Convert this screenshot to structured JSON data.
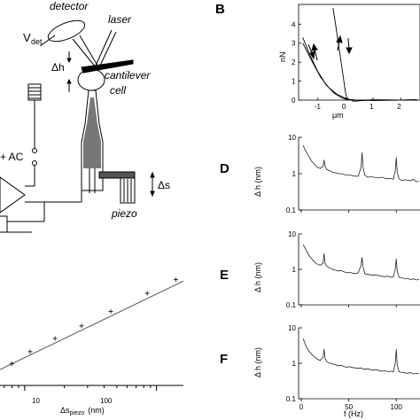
{
  "panelA": {
    "labels": {
      "detector": "detector",
      "laser": "laser",
      "vdet": "V",
      "vdet_sub": "det",
      "dh": "Δh",
      "cantilever": "cantilever",
      "cell": "cell",
      "ac": "+ AC",
      "ds": "Δs",
      "piezo": "piezo"
    }
  },
  "panels": {
    "B": "B",
    "D": "D",
    "E": "E",
    "F": "F"
  },
  "chart_data": [
    {
      "id": "calibration",
      "type": "line",
      "xscale": "log",
      "yscale": "log",
      "xlabel": "Δs",
      "xlabel_sub": "piezo",
      "xlabel_unit": "(nm)",
      "xticks": [
        "10",
        "100"
      ],
      "xlim": [
        6.5,
        160
      ],
      "ylim": [
        0.3,
        40
      ],
      "x": [
        8,
        11,
        17,
        27,
        45,
        85,
        140
      ],
      "y": [
        0.65,
        1.0,
        1.6,
        2.5,
        4.2,
        8.0,
        13.0
      ]
    },
    {
      "id": "B",
      "type": "line",
      "xlabel": "μm",
      "ylabel": "nN",
      "xticks": [
        "-1",
        "0",
        "1",
        "2"
      ],
      "yticks": [
        "0",
        "1",
        "2",
        "3",
        "4"
      ],
      "xlim": [
        -1.7,
        2.7
      ],
      "ylim": [
        0,
        4.9
      ],
      "series": [
        {
          "x": [
            -1.55,
            -1.3,
            -1.0,
            -0.7,
            -0.4,
            -0.1,
            0.05,
            0.3,
            1.0,
            2.0,
            2.6
          ],
          "y": [
            3.3,
            2.4,
            1.5,
            0.8,
            0.35,
            0.1,
            0.04,
            0.0,
            -0.02,
            0.0,
            0.02
          ]
        },
        {
          "x": [
            -1.55,
            -1.2,
            -0.9,
            -0.6,
            -0.3,
            0.0,
            0.15,
            0.4,
            1.0,
            2.0,
            2.6
          ],
          "y": [
            3.0,
            2.0,
            1.2,
            0.65,
            0.3,
            0.1,
            0.03,
            0.0,
            0.01,
            0.0,
            0.01
          ]
        },
        {
          "x": [
            -0.45,
            -0.35,
            -0.25,
            -0.15,
            -0.05,
            0.0,
            0.05,
            0.3,
            1.0,
            2.0,
            2.6
          ],
          "y": [
            4.85,
            3.9,
            2.9,
            1.9,
            0.9,
            0.4,
            0.1,
            -0.06,
            0.02,
            0.0,
            0.02
          ]
        }
      ]
    },
    {
      "id": "D",
      "type": "line",
      "yscale": "log",
      "ylabel": "Δ h (nm)",
      "yticks": [
        "10",
        "1",
        "0.1"
      ],
      "xlim": [
        0,
        125
      ],
      "ylim": [
        0.1,
        10
      ],
      "x": [
        2,
        5,
        8,
        11,
        14,
        17,
        20,
        23,
        24,
        25,
        27,
        30,
        33,
        36,
        39,
        42,
        45,
        48,
        51,
        54,
        57,
        60,
        63,
        64,
        65,
        67,
        70,
        73,
        76,
        79,
        82,
        85,
        88,
        91,
        94,
        97,
        99,
        100,
        101,
        103,
        106,
        109,
        112,
        115,
        118,
        121,
        124
      ],
      "y": [
        6,
        4,
        3,
        2.2,
        1.8,
        1.5,
        1.4,
        1.6,
        2.4,
        1.6,
        1.3,
        1.2,
        1.1,
        1.05,
        1.0,
        1.0,
        0.95,
        0.9,
        0.92,
        0.88,
        0.85,
        0.85,
        1.5,
        3.8,
        1.5,
        0.9,
        0.8,
        0.82,
        0.8,
        0.78,
        0.76,
        0.8,
        0.75,
        0.72,
        0.74,
        0.7,
        1.2,
        2.8,
        1.1,
        0.72,
        0.65,
        0.68,
        0.66,
        0.64,
        0.7,
        0.6,
        0.62
      ]
    },
    {
      "id": "E",
      "type": "line",
      "yscale": "log",
      "ylabel": "Δ h (nm)",
      "yticks": [
        "10",
        "1",
        "0.1"
      ],
      "xlim": [
        0,
        125
      ],
      "ylim": [
        0.1,
        10
      ],
      "x": [
        2,
        5,
        8,
        11,
        14,
        17,
        20,
        23,
        24,
        25,
        27,
        30,
        33,
        36,
        39,
        42,
        45,
        48,
        51,
        54,
        57,
        60,
        63,
        64,
        65,
        67,
        70,
        73,
        76,
        79,
        82,
        85,
        88,
        91,
        94,
        97,
        99,
        100,
        101,
        103,
        106,
        109,
        112,
        115,
        118,
        121,
        124
      ],
      "y": [
        5,
        3.5,
        2.5,
        2.0,
        1.6,
        1.4,
        1.3,
        1.5,
        2.8,
        1.5,
        1.2,
        1.1,
        1.0,
        0.95,
        0.9,
        0.92,
        0.85,
        0.8,
        0.82,
        0.78,
        0.76,
        0.8,
        1.3,
        2.2,
        1.2,
        0.75,
        0.72,
        0.7,
        0.68,
        0.7,
        0.66,
        0.64,
        0.62,
        0.65,
        0.6,
        0.62,
        1.0,
        2.0,
        0.9,
        0.6,
        0.58,
        0.55,
        0.56,
        0.52,
        0.54,
        0.5,
        0.52
      ]
    },
    {
      "id": "F",
      "type": "line",
      "yscale": "log",
      "ylabel": "Δ h (nm)",
      "xlabel": "f (Hz)",
      "yticks": [
        "10",
        "1",
        "0.1"
      ],
      "xticks": [
        "0",
        "50",
        "100"
      ],
      "xlim": [
        0,
        125
      ],
      "ylim": [
        0.1,
        10
      ],
      "x": [
        2,
        5,
        8,
        11,
        14,
        17,
        20,
        23,
        24,
        25,
        27,
        30,
        33,
        36,
        39,
        42,
        45,
        48,
        51,
        54,
        57,
        60,
        63,
        64,
        65,
        67,
        70,
        73,
        76,
        79,
        82,
        85,
        88,
        91,
        94,
        97,
        99,
        100,
        101,
        103,
        106,
        109,
        112,
        115,
        118,
        121,
        124
      ],
      "y": [
        5,
        3.0,
        2.2,
        1.8,
        1.5,
        1.3,
        1.2,
        1.5,
        2.5,
        1.4,
        1.1,
        1.0,
        0.95,
        0.9,
        0.85,
        0.88,
        0.8,
        0.78,
        0.8,
        0.76,
        0.74,
        0.72,
        0.74,
        0.72,
        0.7,
        0.68,
        0.7,
        0.66,
        0.64,
        0.66,
        0.62,
        0.6,
        0.62,
        0.58,
        0.6,
        0.58,
        1.0,
        2.5,
        0.9,
        0.58,
        0.55,
        0.54,
        0.52,
        0.55,
        0.5,
        0.52,
        0.5
      ]
    }
  ]
}
